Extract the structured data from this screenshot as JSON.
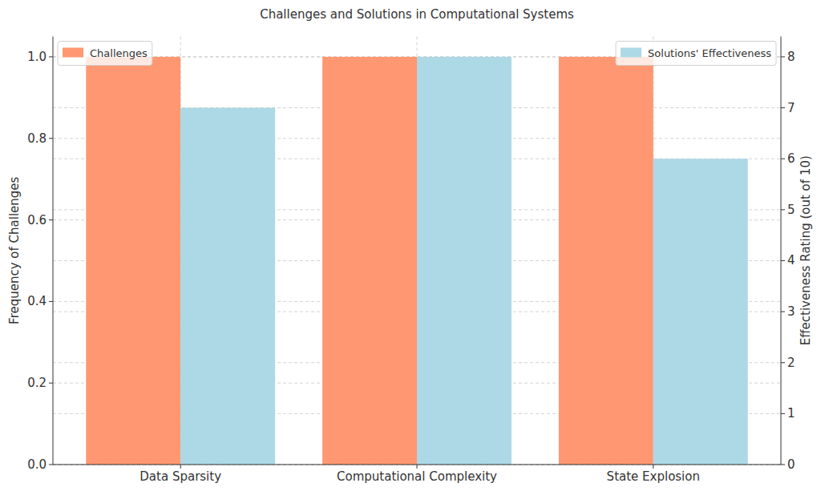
{
  "chart_data": {
    "type": "bar",
    "title": "Challenges and Solutions in Computational Systems",
    "categories": [
      "Data Sparsity",
      "Computational Complexity",
      "State Explosion"
    ],
    "series": [
      {
        "name": "Challenges",
        "color": "#ff9872",
        "values": [
          1,
          1,
          1
        ]
      },
      {
        "name": "Solutions' Effectiveness",
        "color": "#add8e6",
        "values": [
          7,
          8,
          6
        ],
        "axis": "y2"
      }
    ],
    "y_label": "Frequency of Challenges",
    "y2_label": "Effectiveness Rating (out of 10)",
    "ylim": [
      0,
      1.05
    ],
    "yticks": [
      {
        "value": 0,
        "label": "0.0"
      },
      0.2,
      0.4,
      0.6,
      0.8,
      {
        "value": 1,
        "label": "1.0"
      }
    ],
    "y2lim": [
      0,
      8.4
    ],
    "y2ticks": [
      0,
      1,
      2,
      3,
      4,
      5,
      6,
      7,
      8
    ],
    "grid": true,
    "legend": "upper left"
  }
}
